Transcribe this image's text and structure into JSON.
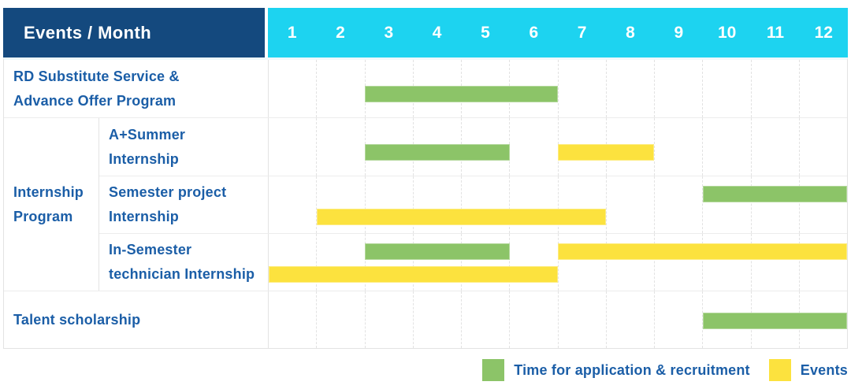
{
  "window": {
    "background": "#ffffff"
  },
  "colors": {
    "header_bg": "#14497e",
    "months_bg": "#1dd3f0",
    "header_text": "#ffffff",
    "label_text": "#1b5ea7",
    "green": "#8cc468",
    "yellow": "#fce23e",
    "grid_line": "#e2e2e2",
    "row_border": "#ececec"
  },
  "header": {
    "title": "Events / Month"
  },
  "legend": {
    "items": [
      {
        "label": "Time for application & recruitment",
        "color": "#8cc468",
        "meaning": "application-recruitment-period"
      },
      {
        "label": "Events",
        "color": "#fce23e",
        "meaning": "event-period"
      }
    ]
  },
  "chart_data": {
    "type": "bar",
    "variant": "horizontal-gantt",
    "title": "Events / Month",
    "x_axis": {
      "unit": "month",
      "range": [
        1,
        12
      ],
      "ticks": [
        "1",
        "2",
        "3",
        "4",
        "5",
        "6",
        "7",
        "8",
        "9",
        "10",
        "11",
        "12"
      ],
      "gridlines": "dashed"
    },
    "legend_position": "bottom-right",
    "series_legend": [
      {
        "name": "Time for application & recruitment",
        "color": "#8cc468"
      },
      {
        "name": "Events",
        "color": "#fce23e"
      }
    ],
    "groups": [
      {
        "label": "Internship Program",
        "label_lines": [
          "Internship",
          "Program"
        ],
        "row_indexes": [
          1,
          2,
          3
        ]
      }
    ],
    "rows": [
      {
        "label": "RD Substitute Service & Advance Offer Program",
        "label_lines": [
          "RD Substitute Service &",
          "Advance Offer Program"
        ],
        "group": "",
        "bars": [
          {
            "series": "Time for application & recruitment",
            "color": "green",
            "start_month": 3,
            "end_month": 6,
            "track": "mid"
          }
        ]
      },
      {
        "label": "A+Summer Internship",
        "label_lines": [
          "A+Summer",
          "Internship"
        ],
        "group": "Internship Program",
        "bars": [
          {
            "series": "Time for application & recruitment",
            "color": "green",
            "start_month": 3,
            "end_month": 5,
            "track": "mid"
          },
          {
            "series": "Events",
            "color": "yellow",
            "start_month": 7,
            "end_month": 8,
            "track": "mid"
          }
        ]
      },
      {
        "label": "Semester project Internship",
        "label_lines": [
          "Semester project",
          "Internship"
        ],
        "group": "Internship Program",
        "bars": [
          {
            "series": "Time for application & recruitment",
            "color": "green",
            "start_month": 10,
            "end_month": 12,
            "track": "top"
          },
          {
            "series": "Events",
            "color": "yellow",
            "start_month": 2,
            "end_month": 7,
            "track": "bottom"
          }
        ]
      },
      {
        "label": "In-Semester technician Internship",
        "label_lines": [
          "In-Semester",
          "technician Internship"
        ],
        "group": "Internship Program",
        "bars": [
          {
            "series": "Time for application & recruitment",
            "color": "green",
            "start_month": 3,
            "end_month": 5,
            "track": "top"
          },
          {
            "series": "Events",
            "color": "yellow",
            "start_month": 7,
            "end_month": 12,
            "track": "top"
          },
          {
            "series": "Events",
            "color": "yellow",
            "start_month": 1,
            "end_month": 6,
            "track": "bottom"
          }
        ]
      },
      {
        "label": "Talent scholarship",
        "label_lines": [
          "Talent scholarship"
        ],
        "group": "",
        "bars": [
          {
            "series": "Time for application & recruitment",
            "color": "green",
            "start_month": 10,
            "end_month": 12,
            "track": "center"
          }
        ]
      }
    ]
  }
}
